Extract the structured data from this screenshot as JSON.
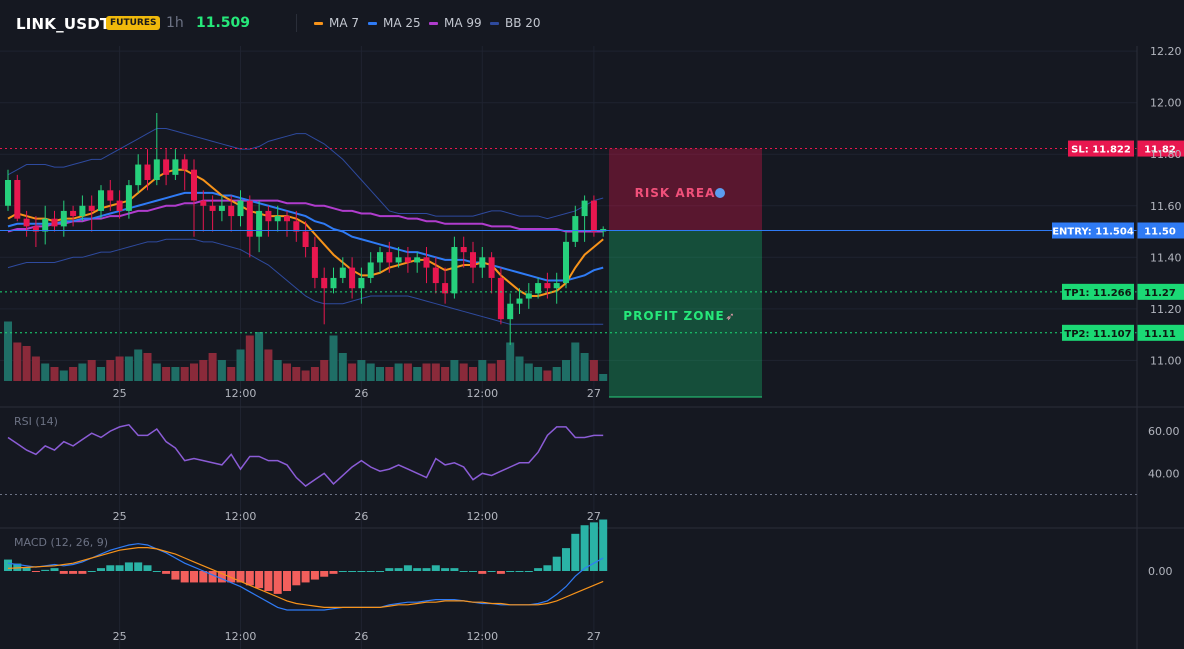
{
  "header": {
    "symbol": "LINK_USDT",
    "badge": "FUTURES",
    "timeframe": "1h",
    "last_price": "11.509",
    "legend": [
      {
        "label": "MA 7",
        "color": "#f7931a"
      },
      {
        "label": "MA 25",
        "color": "#2f7bf5"
      },
      {
        "label": "MA 99",
        "color": "#b03ccd"
      },
      {
        "label": "BB 20",
        "color": "#2e4a9e"
      }
    ]
  },
  "colors": {
    "up": "#26d07c",
    "down": "#e8174f",
    "vol_up": "#1f6e66",
    "vol_down": "#8a2a3a",
    "rsi": "#8b5cd6",
    "macd": "#2f7bf5",
    "signal": "#f7931a",
    "hist_up": "#2ab3a6",
    "hist_down": "#f25f5c"
  },
  "price_axis": {
    "ticks": [
      "12.20",
      "12.00",
      "11.80",
      "11.60",
      "11.40",
      "11.20",
      "11.00"
    ],
    "min": 10.92,
    "max": 12.22
  },
  "time_axis": {
    "labels": [
      "25",
      "12:00",
      "26",
      "12:00",
      "27"
    ]
  },
  "levels": {
    "sl": {
      "label": "SL: 11.822",
      "value": 11.822,
      "short": "11.82"
    },
    "entry": {
      "label": "ENTRY: 11.504",
      "value": 11.504,
      "short": "11.50"
    },
    "tp1": {
      "label": "TP1: 11.266",
      "value": 11.266,
      "short": "11.27"
    },
    "tp2": {
      "label": "TP2: 11.107",
      "value": 11.107,
      "short": "11.11"
    }
  },
  "zones": {
    "risk_label": "RISK AREA",
    "profit_label": "PROFIT ZONE"
  },
  "rsi": {
    "title": "RSI (14)",
    "ticks": [
      "60.00",
      "40.00"
    ]
  },
  "macd": {
    "title": "MACD (12, 26, 9)",
    "ticks": [
      "0.00"
    ]
  },
  "chart_data": {
    "type": "candlestick",
    "candles": [
      [
        11.6,
        11.7,
        11.58,
        11.74
      ],
      [
        11.7,
        11.55,
        11.54,
        11.72
      ],
      [
        11.55,
        11.52,
        11.48,
        11.58
      ],
      [
        11.52,
        11.5,
        11.44,
        11.56
      ],
      [
        11.5,
        11.55,
        11.45,
        11.6
      ],
      [
        11.55,
        11.52,
        11.5,
        11.58
      ],
      [
        11.52,
        11.58,
        11.48,
        11.62
      ],
      [
        11.58,
        11.56,
        11.52,
        11.6
      ],
      [
        11.56,
        11.6,
        11.54,
        11.64
      ],
      [
        11.6,
        11.58,
        11.5,
        11.64
      ],
      [
        11.58,
        11.66,
        11.55,
        11.68
      ],
      [
        11.66,
        11.62,
        11.58,
        11.7
      ],
      [
        11.62,
        11.58,
        11.55,
        11.66
      ],
      [
        11.58,
        11.68,
        11.55,
        11.7
      ],
      [
        11.68,
        11.76,
        11.65,
        11.8
      ],
      [
        11.76,
        11.7,
        11.66,
        11.82
      ],
      [
        11.7,
        11.78,
        11.68,
        11.96
      ],
      [
        11.78,
        11.72,
        11.68,
        11.82
      ],
      [
        11.72,
        11.78,
        11.7,
        11.82
      ],
      [
        11.78,
        11.74,
        11.66,
        11.8
      ],
      [
        11.74,
        11.62,
        11.48,
        11.78
      ],
      [
        11.62,
        11.6,
        11.5,
        11.66
      ],
      [
        11.6,
        11.58,
        11.5,
        11.64
      ],
      [
        11.58,
        11.6,
        11.54,
        11.64
      ],
      [
        11.6,
        11.56,
        11.5,
        11.64
      ],
      [
        11.56,
        11.62,
        11.52,
        11.66
      ],
      [
        11.62,
        11.48,
        11.4,
        11.64
      ],
      [
        11.48,
        11.58,
        11.42,
        11.62
      ],
      [
        11.58,
        11.54,
        11.48,
        11.6
      ],
      [
        11.54,
        11.56,
        11.5,
        11.6
      ],
      [
        11.56,
        11.54,
        11.48,
        11.58
      ],
      [
        11.54,
        11.5,
        11.46,
        11.58
      ],
      [
        11.5,
        11.44,
        11.4,
        11.54
      ],
      [
        11.44,
        11.32,
        11.28,
        11.48
      ],
      [
        11.32,
        11.28,
        11.14,
        11.36
      ],
      [
        11.28,
        11.32,
        11.26,
        11.36
      ],
      [
        11.32,
        11.36,
        11.3,
        11.4
      ],
      [
        11.36,
        11.28,
        11.24,
        11.4
      ],
      [
        11.28,
        11.32,
        11.22,
        11.36
      ],
      [
        11.32,
        11.38,
        11.3,
        11.42
      ],
      [
        11.38,
        11.42,
        11.34,
        11.44
      ],
      [
        11.42,
        11.38,
        11.34,
        11.46
      ],
      [
        11.38,
        11.4,
        11.36,
        11.44
      ],
      [
        11.4,
        11.38,
        11.34,
        11.44
      ],
      [
        11.38,
        11.4,
        11.34,
        11.42
      ],
      [
        11.4,
        11.36,
        11.3,
        11.44
      ],
      [
        11.36,
        11.3,
        11.26,
        11.4
      ],
      [
        11.3,
        11.26,
        11.22,
        11.36
      ],
      [
        11.26,
        11.44,
        11.24,
        11.48
      ],
      [
        11.44,
        11.42,
        11.36,
        11.48
      ],
      [
        11.42,
        11.36,
        11.3,
        11.46
      ],
      [
        11.36,
        11.4,
        11.32,
        11.44
      ],
      [
        11.4,
        11.32,
        11.26,
        11.42
      ],
      [
        11.32,
        11.16,
        11.14,
        11.36
      ],
      [
        11.16,
        11.22,
        11.06,
        11.26
      ],
      [
        11.22,
        11.24,
        11.18,
        11.28
      ],
      [
        11.24,
        11.26,
        11.2,
        11.3
      ],
      [
        11.26,
        11.3,
        11.24,
        11.32
      ],
      [
        11.3,
        11.28,
        11.24,
        11.34
      ],
      [
        11.28,
        11.3,
        11.22,
        11.34
      ],
      [
        11.3,
        11.46,
        11.28,
        11.5
      ],
      [
        11.46,
        11.56,
        11.44,
        11.6
      ],
      [
        11.56,
        11.62,
        11.46,
        11.64
      ],
      [
        11.62,
        11.5,
        11.48,
        11.64
      ],
      [
        11.5,
        11.51,
        11.48,
        11.52
      ]
    ],
    "volume": [
      0.85,
      0.55,
      0.5,
      0.35,
      0.25,
      0.2,
      0.15,
      0.2,
      0.25,
      0.3,
      0.2,
      0.3,
      0.35,
      0.35,
      0.45,
      0.4,
      0.25,
      0.2,
      0.2,
      0.2,
      0.25,
      0.3,
      0.4,
      0.3,
      0.2,
      0.45,
      0.65,
      0.7,
      0.45,
      0.3,
      0.25,
      0.2,
      0.15,
      0.2,
      0.3,
      0.65,
      0.4,
      0.25,
      0.3,
      0.25,
      0.2,
      0.2,
      0.25,
      0.25,
      0.2,
      0.25,
      0.25,
      0.2,
      0.3,
      0.25,
      0.2,
      0.3,
      0.25,
      0.3,
      0.55,
      0.35,
      0.25,
      0.2,
      0.15,
      0.2,
      0.3,
      0.55,
      0.4,
      0.3,
      0.1
    ],
    "ma7": [
      11.55,
      11.57,
      11.56,
      11.55,
      11.55,
      11.54,
      11.55,
      11.55,
      11.56,
      11.57,
      11.59,
      11.6,
      11.61,
      11.62,
      11.65,
      11.68,
      11.71,
      11.73,
      11.74,
      11.74,
      11.72,
      11.7,
      11.67,
      11.64,
      11.62,
      11.6,
      11.58,
      11.57,
      11.56,
      11.56,
      11.56,
      11.55,
      11.53,
      11.49,
      11.45,
      11.41,
      11.38,
      11.35,
      11.33,
      11.33,
      11.34,
      11.36,
      11.37,
      11.38,
      11.39,
      11.39,
      11.37,
      11.35,
      11.36,
      11.37,
      11.37,
      11.38,
      11.37,
      11.33,
      11.3,
      11.27,
      11.25,
      11.25,
      11.26,
      11.27,
      11.3,
      11.36,
      11.41,
      11.44,
      11.47
    ],
    "ma25": [
      11.52,
      11.53,
      11.53,
      11.53,
      11.53,
      11.53,
      11.54,
      11.54,
      11.55,
      11.55,
      11.56,
      11.57,
      11.58,
      11.59,
      11.6,
      11.61,
      11.62,
      11.63,
      11.64,
      11.65,
      11.65,
      11.65,
      11.65,
      11.64,
      11.64,
      11.63,
      11.62,
      11.61,
      11.6,
      11.59,
      11.58,
      11.57,
      11.56,
      11.54,
      11.53,
      11.51,
      11.5,
      11.48,
      11.47,
      11.46,
      11.45,
      11.44,
      11.43,
      11.42,
      11.42,
      11.41,
      11.4,
      11.39,
      11.39,
      11.39,
      11.38,
      11.38,
      11.37,
      11.36,
      11.35,
      11.34,
      11.33,
      11.32,
      11.31,
      11.31,
      11.31,
      11.32,
      11.33,
      11.35,
      11.36
    ],
    "ma99": [
      11.5,
      11.51,
      11.51,
      11.52,
      11.52,
      11.53,
      11.53,
      11.54,
      11.54,
      11.55,
      11.55,
      11.56,
      11.56,
      11.57,
      11.58,
      11.58,
      11.59,
      11.6,
      11.6,
      11.61,
      11.61,
      11.62,
      11.62,
      11.62,
      11.62,
      11.62,
      11.62,
      11.62,
      11.62,
      11.62,
      11.61,
      11.61,
      11.61,
      11.6,
      11.6,
      11.59,
      11.58,
      11.58,
      11.57,
      11.57,
      11.56,
      11.56,
      11.56,
      11.55,
      11.55,
      11.54,
      11.54,
      11.53,
      11.53,
      11.53,
      11.53,
      11.53,
      11.52,
      11.52,
      11.52,
      11.51,
      11.51,
      11.51,
      11.51,
      11.51,
      11.5,
      11.5,
      11.5,
      11.5,
      11.5
    ],
    "bb_upper": [
      11.72,
      11.74,
      11.76,
      11.76,
      11.76,
      11.75,
      11.75,
      11.76,
      11.77,
      11.78,
      11.78,
      11.8,
      11.82,
      11.84,
      11.86,
      11.88,
      11.9,
      11.9,
      11.89,
      11.88,
      11.87,
      11.86,
      11.85,
      11.84,
      11.83,
      11.82,
      11.82,
      11.83,
      11.85,
      11.86,
      11.87,
      11.88,
      11.88,
      11.86,
      11.84,
      11.81,
      11.78,
      11.74,
      11.7,
      11.66,
      11.62,
      11.58,
      11.57,
      11.57,
      11.57,
      11.57,
      11.56,
      11.56,
      11.56,
      11.56,
      11.56,
      11.57,
      11.58,
      11.58,
      11.57,
      11.56,
      11.56,
      11.56,
      11.55,
      11.56,
      11.57,
      11.58,
      11.6,
      11.62,
      11.63
    ],
    "bb_lower": [
      11.36,
      11.37,
      11.38,
      11.38,
      11.38,
      11.38,
      11.39,
      11.4,
      11.4,
      11.41,
      11.42,
      11.42,
      11.43,
      11.44,
      11.45,
      11.46,
      11.46,
      11.47,
      11.47,
      11.47,
      11.47,
      11.46,
      11.46,
      11.45,
      11.44,
      11.43,
      11.41,
      11.39,
      11.37,
      11.34,
      11.31,
      11.28,
      11.25,
      11.23,
      11.22,
      11.22,
      11.22,
      11.23,
      11.24,
      11.25,
      11.25,
      11.25,
      11.25,
      11.25,
      11.24,
      11.23,
      11.22,
      11.21,
      11.2,
      11.19,
      11.18,
      11.17,
      11.16,
      11.15,
      11.14,
      11.14,
      11.14,
      11.14,
      11.14,
      11.14,
      11.14,
      11.14,
      11.14,
      11.14,
      11.14
    ],
    "rsi": [
      57,
      54,
      51,
      49,
      53,
      51,
      55,
      53,
      56,
      59,
      57,
      60,
      62,
      63,
      58,
      58,
      61,
      55,
      52,
      46,
      47,
      46,
      45,
      44,
      49,
      42,
      48,
      48,
      46,
      46,
      44,
      38,
      34,
      37,
      40,
      35,
      39,
      43,
      46,
      43,
      41,
      42,
      44,
      42,
      40,
      38,
      47,
      44,
      45,
      43,
      37,
      40,
      39,
      41,
      43,
      45,
      45,
      50,
      58,
      62,
      62,
      57,
      57,
      58,
      58
    ],
    "macd": [
      0.03,
      0.025,
      0.02,
      0.015,
      0.02,
      0.025,
      0.02,
      0.025,
      0.035,
      0.05,
      0.065,
      0.08,
      0.09,
      0.1,
      0.105,
      0.1,
      0.085,
      0.07,
      0.05,
      0.03,
      0.015,
      0.0,
      -0.015,
      -0.03,
      -0.045,
      -0.06,
      -0.08,
      -0.1,
      -0.12,
      -0.14,
      -0.15,
      -0.15,
      -0.15,
      -0.15,
      -0.15,
      -0.145,
      -0.14,
      -0.14,
      -0.14,
      -0.14,
      -0.14,
      -0.13,
      -0.125,
      -0.12,
      -0.12,
      -0.115,
      -0.11,
      -0.11,
      -0.11,
      -0.115,
      -0.12,
      -0.125,
      -0.125,
      -0.13,
      -0.13,
      -0.13,
      -0.13,
      -0.125,
      -0.115,
      -0.09,
      -0.06,
      -0.02,
      0.01,
      0.03,
      0.05
    ],
    "signal": [
      0.01,
      0.012,
      0.014,
      0.016,
      0.018,
      0.02,
      0.025,
      0.03,
      0.04,
      0.05,
      0.06,
      0.07,
      0.08,
      0.085,
      0.09,
      0.09,
      0.085,
      0.075,
      0.065,
      0.05,
      0.035,
      0.02,
      0.005,
      -0.01,
      -0.025,
      -0.04,
      -0.055,
      -0.07,
      -0.085,
      -0.1,
      -0.115,
      -0.125,
      -0.13,
      -0.135,
      -0.14,
      -0.14,
      -0.14,
      -0.14,
      -0.14,
      -0.14,
      -0.14,
      -0.135,
      -0.13,
      -0.13,
      -0.125,
      -0.12,
      -0.12,
      -0.115,
      -0.115,
      -0.115,
      -0.12,
      -0.12,
      -0.125,
      -0.125,
      -0.13,
      -0.13,
      -0.13,
      -0.13,
      -0.125,
      -0.115,
      -0.1,
      -0.085,
      -0.07,
      -0.055,
      -0.04
    ],
    "hist": [
      0.02,
      0.013,
      0.006,
      -0.001,
      0.002,
      0.005,
      -0.005,
      -0.005,
      -0.005,
      0.0,
      0.005,
      0.01,
      0.01,
      0.015,
      0.015,
      0.01,
      0.0,
      -0.005,
      -0.015,
      -0.02,
      -0.02,
      -0.02,
      -0.02,
      -0.02,
      -0.02,
      -0.02,
      -0.025,
      -0.03,
      -0.035,
      -0.04,
      -0.035,
      -0.025,
      -0.02,
      -0.015,
      -0.01,
      -0.005,
      0.0,
      0.0,
      0.0,
      0.0,
      0.0,
      0.005,
      0.005,
      0.01,
      0.005,
      0.005,
      0.01,
      0.005,
      0.005,
      0.0,
      0.0,
      -0.005,
      0.0,
      -0.005,
      0.0,
      0.0,
      0.0,
      0.005,
      0.01,
      0.025,
      0.04,
      0.065,
      0.08,
      0.085,
      0.09
    ]
  }
}
